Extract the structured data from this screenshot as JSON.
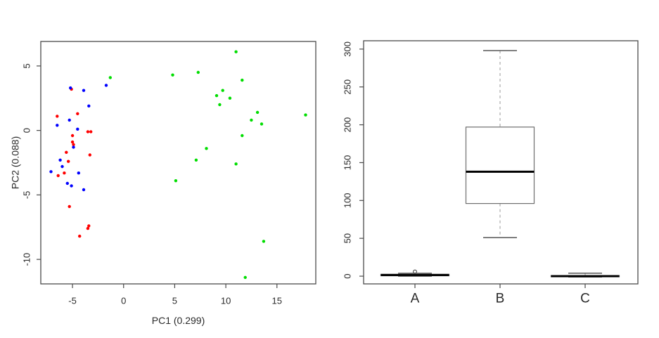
{
  "figure": {
    "background": "#ffffff"
  },
  "chart_data": [
    {
      "id": "pca-scatter",
      "type": "scatter",
      "title": "",
      "xlabel": "PC1 (0.299)",
      "ylabel": "PC2 (0.088)",
      "xlim": [
        -8.1,
        18.8
      ],
      "ylim": [
        -11.9,
        6.9
      ],
      "x_ticks": [
        -5,
        0,
        5,
        10,
        15
      ],
      "y_ticks": [
        -10,
        -5,
        0,
        5
      ],
      "grid": false,
      "legend_position": "none",
      "point_shape": "filled-circle",
      "series": [
        {
          "name": "red-group",
          "color": "#ff0000",
          "points": [
            [
              -5.1,
              3.2
            ],
            [
              -6.5,
              1.1
            ],
            [
              -4.5,
              1.3
            ],
            [
              -5.0,
              -0.4
            ],
            [
              -3.5,
              -0.1
            ],
            [
              -3.2,
              -0.1
            ],
            [
              -5.0,
              -0.9
            ],
            [
              -4.9,
              -1.1
            ],
            [
              -5.6,
              -1.7
            ],
            [
              -3.3,
              -1.9
            ],
            [
              -5.4,
              -2.4
            ],
            [
              -5.8,
              -3.3
            ],
            [
              -6.4,
              -3.5
            ],
            [
              -5.3,
              -5.9
            ],
            [
              -3.4,
              -7.4
            ],
            [
              -3.5,
              -7.6
            ],
            [
              -4.3,
              -8.2
            ]
          ]
        },
        {
          "name": "blue-group",
          "color": "#0000ff",
          "points": [
            [
              -5.2,
              3.3
            ],
            [
              -3.9,
              3.1
            ],
            [
              -1.7,
              3.5
            ],
            [
              -3.4,
              1.9
            ],
            [
              -5.3,
              0.8
            ],
            [
              -6.5,
              0.4
            ],
            [
              -4.5,
              0.1
            ],
            [
              -4.9,
              -1.3
            ],
            [
              -6.2,
              -2.3
            ],
            [
              -6.0,
              -2.8
            ],
            [
              -7.1,
              -3.2
            ],
            [
              -4.4,
              -3.3
            ],
            [
              -5.5,
              -4.1
            ],
            [
              -5.1,
              -4.3
            ],
            [
              -3.9,
              -4.6
            ]
          ]
        },
        {
          "name": "green-group",
          "color": "#00dd00",
          "points": [
            [
              11.0,
              6.1
            ],
            [
              4.8,
              4.3
            ],
            [
              7.3,
              4.5
            ],
            [
              -1.3,
              4.1
            ],
            [
              11.6,
              3.9
            ],
            [
              9.7,
              3.1
            ],
            [
              9.1,
              2.7
            ],
            [
              10.4,
              2.5
            ],
            [
              9.4,
              2.0
            ],
            [
              13.1,
              1.4
            ],
            [
              17.8,
              1.2
            ],
            [
              12.5,
              0.8
            ],
            [
              13.5,
              0.5
            ],
            [
              11.6,
              -0.4
            ],
            [
              8.1,
              -1.4
            ],
            [
              7.1,
              -2.3
            ],
            [
              11.0,
              -2.6
            ],
            [
              5.1,
              -3.9
            ],
            [
              13.7,
              -8.6
            ],
            [
              11.9,
              -11.4
            ]
          ]
        }
      ]
    },
    {
      "id": "group-boxplot",
      "type": "boxplot",
      "title": "",
      "xlabel": "",
      "ylabel": "",
      "categories": [
        "A",
        "B",
        "C"
      ],
      "ylim": [
        -10.2,
        311
      ],
      "y_ticks": [
        0,
        50,
        100,
        150,
        200,
        250,
        300
      ],
      "grid": false,
      "boxes": [
        {
          "category": "A",
          "whisker_low": 0,
          "q1": 0.5,
          "median": 1.5,
          "q3": 2.5,
          "whisker_high": 3.8,
          "outliers": [
            6
          ]
        },
        {
          "category": "B",
          "whisker_low": 51,
          "q1": 96,
          "median": 138,
          "q3": 197,
          "whisker_high": 298,
          "outliers": []
        },
        {
          "category": "C",
          "whisker_low": -1,
          "q1": -0.8,
          "median": 0,
          "q3": 0.8,
          "whisker_high": 4,
          "outliers": []
        }
      ]
    }
  ]
}
